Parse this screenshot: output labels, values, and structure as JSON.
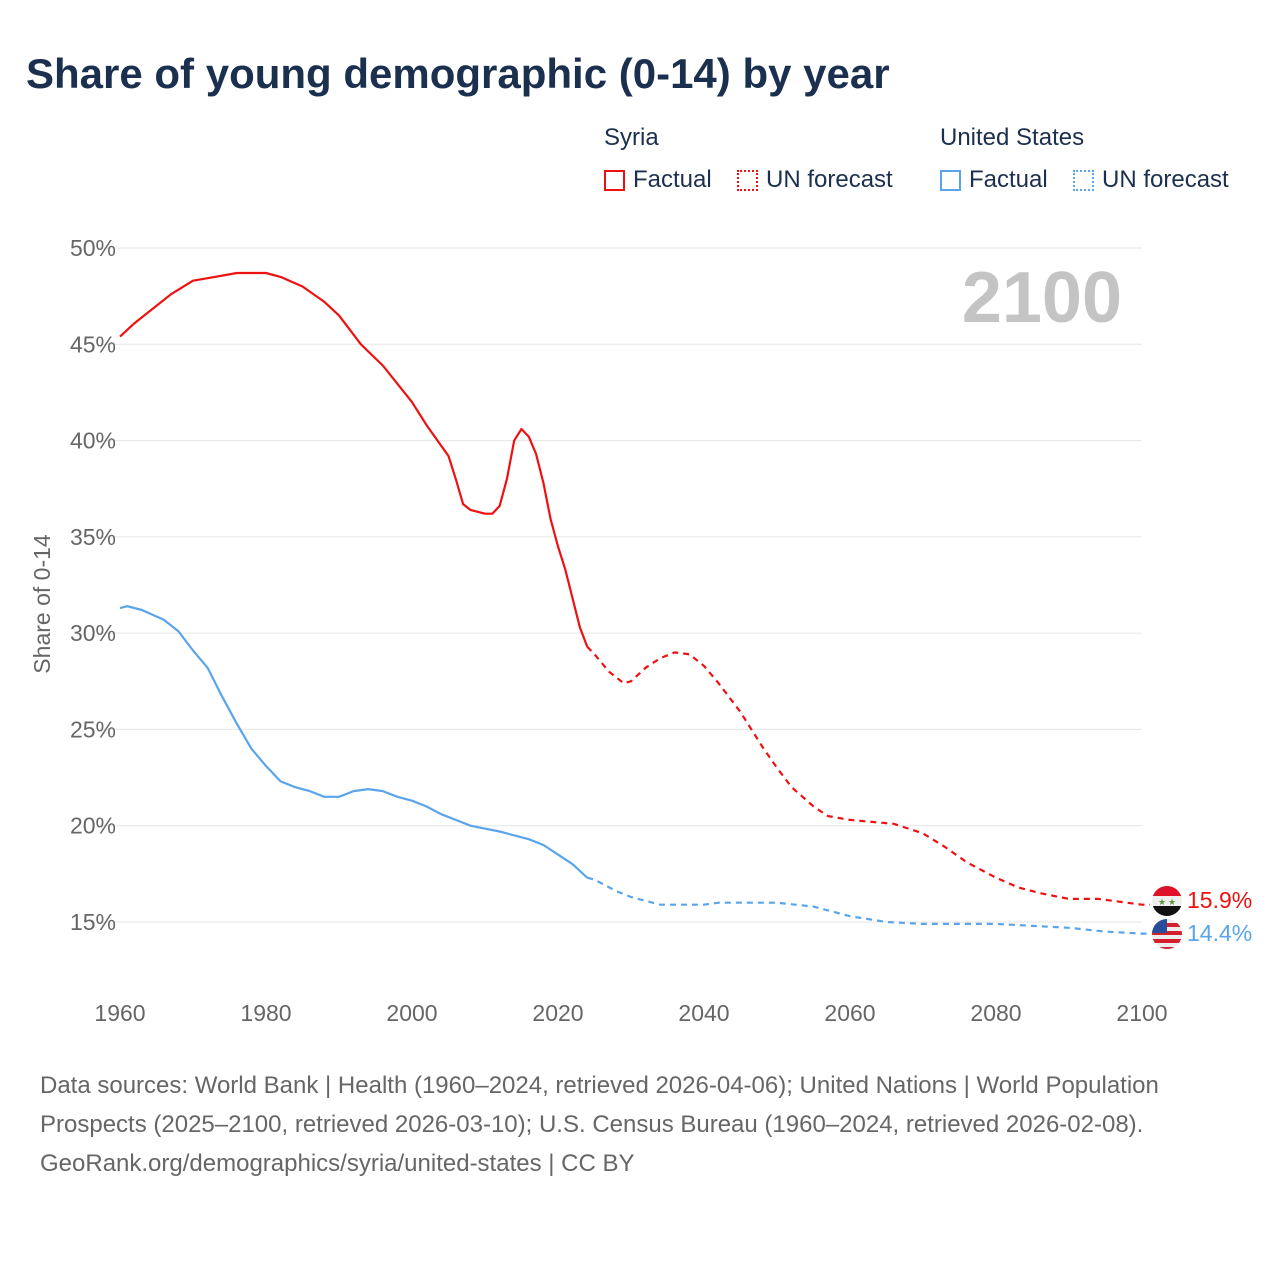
{
  "title": "Share of young demographic (0-14) by year",
  "legend": {
    "groups": [
      {
        "name": "Syria",
        "color": "#ee1111",
        "items": [
          "Factual",
          "UN forecast"
        ]
      },
      {
        "name": "United States",
        "color": "#5aa5ea",
        "items": [
          "Factual",
          "UN forecast"
        ]
      }
    ]
  },
  "footer": {
    "sources": "Data sources: World Bank | Health (1960–2024, retrieved 2026-04-06); United Nations | World Population Prospects (2025–2100, retrieved 2026-03-10); U.S. Census Bureau (1960–2024, retrieved 2026-02-08).",
    "credit": "GeoRank.org/demographics/syria/united-states | CC BY"
  },
  "chart_data": {
    "type": "line",
    "title": "Share of young demographic (0-14) by year",
    "ylabel": "Share of 0-14",
    "xlabel": "",
    "year_label": "2100",
    "xlim": [
      1960,
      2100
    ],
    "ylim": [
      15,
      50
    ],
    "xticks": [
      "1960",
      "1980",
      "2000",
      "2020",
      "2040",
      "2060",
      "2080",
      "2100"
    ],
    "yticks": [
      "15%",
      "20%",
      "25%",
      "30%",
      "35%",
      "40%",
      "45%",
      "50%"
    ],
    "grid": true,
    "series": [
      {
        "name": "Syria",
        "color": "#ee1111",
        "end_label": "15.9%",
        "factual": [
          [
            1960,
            45.4
          ],
          [
            1962,
            46.1
          ],
          [
            1965,
            47.0
          ],
          [
            1967,
            47.6
          ],
          [
            1970,
            48.3
          ],
          [
            1973,
            48.5
          ],
          [
            1976,
            48.7
          ],
          [
            1980,
            48.7
          ],
          [
            1982,
            48.5
          ],
          [
            1985,
            48.0
          ],
          [
            1988,
            47.2
          ],
          [
            1990,
            46.5
          ],
          [
            1993,
            45.0
          ],
          [
            1996,
            43.9
          ],
          [
            2000,
            42.0
          ],
          [
            2002,
            40.8
          ],
          [
            2005,
            39.2
          ],
          [
            2006,
            38.0
          ],
          [
            2007,
            36.7
          ],
          [
            2008,
            36.4
          ],
          [
            2010,
            36.2
          ],
          [
            2011,
            36.2
          ],
          [
            2012,
            36.6
          ],
          [
            2013,
            38.0
          ],
          [
            2014,
            40.0
          ],
          [
            2015,
            40.6
          ],
          [
            2016,
            40.2
          ],
          [
            2017,
            39.3
          ],
          [
            2018,
            37.8
          ],
          [
            2019,
            35.9
          ],
          [
            2020,
            34.5
          ],
          [
            2021,
            33.3
          ],
          [
            2022,
            31.8
          ],
          [
            2023,
            30.3
          ],
          [
            2024,
            29.3
          ]
        ],
        "forecast": [
          [
            2024,
            29.3
          ],
          [
            2025,
            28.9
          ],
          [
            2027,
            28.0
          ],
          [
            2029,
            27.4
          ],
          [
            2030,
            27.5
          ],
          [
            2032,
            28.2
          ],
          [
            2034,
            28.7
          ],
          [
            2036,
            29.0
          ],
          [
            2038,
            28.9
          ],
          [
            2040,
            28.3
          ],
          [
            2042,
            27.4
          ],
          [
            2045,
            25.9
          ],
          [
            2048,
            24.1
          ],
          [
            2050,
            23.0
          ],
          [
            2052,
            22.0
          ],
          [
            2055,
            21.0
          ],
          [
            2057,
            20.5
          ],
          [
            2060,
            20.3
          ],
          [
            2063,
            20.2
          ],
          [
            2066,
            20.1
          ],
          [
            2070,
            19.6
          ],
          [
            2073,
            18.9
          ],
          [
            2076,
            18.1
          ],
          [
            2080,
            17.3
          ],
          [
            2083,
            16.8
          ],
          [
            2086,
            16.5
          ],
          [
            2090,
            16.2
          ],
          [
            2094,
            16.2
          ],
          [
            2096,
            16.1
          ],
          [
            2100,
            15.9
          ]
        ]
      },
      {
        "name": "United States",
        "color": "#5aa5ea",
        "end_label": "14.4%",
        "factual": [
          [
            1960,
            31.3
          ],
          [
            1961,
            31.4
          ],
          [
            1963,
            31.2
          ],
          [
            1966,
            30.7
          ],
          [
            1968,
            30.1
          ],
          [
            1970,
            29.1
          ],
          [
            1972,
            28.2
          ],
          [
            1974,
            26.7
          ],
          [
            1976,
            25.3
          ],
          [
            1978,
            24.0
          ],
          [
            1980,
            23.1
          ],
          [
            1982,
            22.3
          ],
          [
            1984,
            22.0
          ],
          [
            1986,
            21.8
          ],
          [
            1988,
            21.5
          ],
          [
            1990,
            21.5
          ],
          [
            1992,
            21.8
          ],
          [
            1994,
            21.9
          ],
          [
            1996,
            21.8
          ],
          [
            1998,
            21.5
          ],
          [
            2000,
            21.3
          ],
          [
            2002,
            21.0
          ],
          [
            2004,
            20.6
          ],
          [
            2006,
            20.3
          ],
          [
            2008,
            20.0
          ],
          [
            2012,
            19.7
          ],
          [
            2016,
            19.3
          ],
          [
            2018,
            19.0
          ],
          [
            2020,
            18.5
          ],
          [
            2022,
            18.0
          ],
          [
            2024,
            17.3
          ]
        ],
        "forecast": [
          [
            2024,
            17.3
          ],
          [
            2025,
            17.2
          ],
          [
            2028,
            16.6
          ],
          [
            2030,
            16.3
          ],
          [
            2034,
            15.9
          ],
          [
            2040,
            15.9
          ],
          [
            2042,
            16.0
          ],
          [
            2050,
            16.0
          ],
          [
            2055,
            15.8
          ],
          [
            2060,
            15.3
          ],
          [
            2065,
            15.0
          ],
          [
            2070,
            14.9
          ],
          [
            2080,
            14.9
          ],
          [
            2085,
            14.8
          ],
          [
            2090,
            14.7
          ],
          [
            2095,
            14.5
          ],
          [
            2100,
            14.4
          ]
        ]
      }
    ]
  }
}
